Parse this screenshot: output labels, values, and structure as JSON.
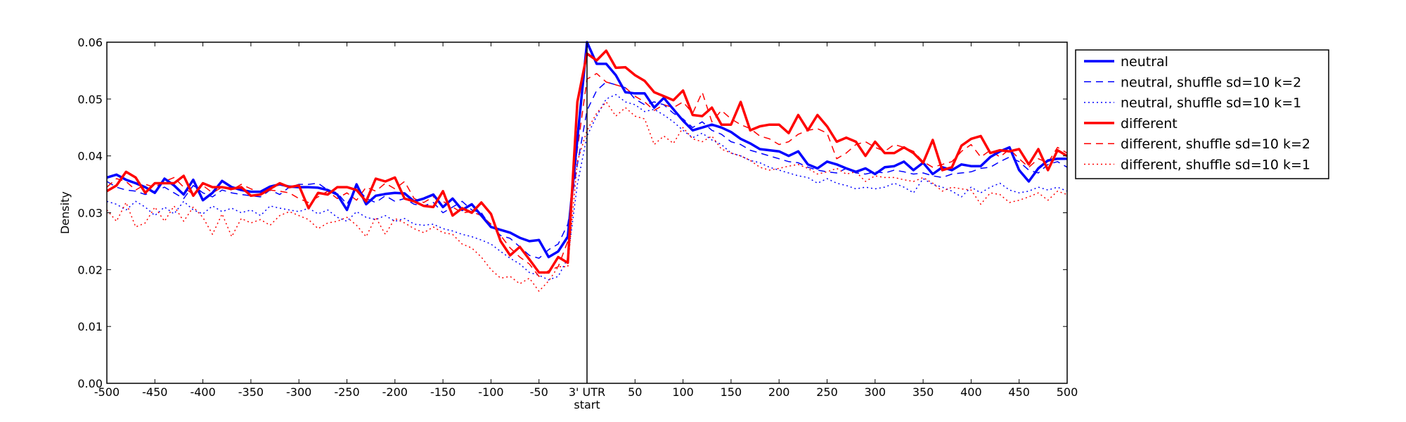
{
  "chart_data": {
    "type": "line",
    "title": "",
    "xlabel": "start",
    "ylabel": "Density",
    "xlim": [
      -500,
      500
    ],
    "ylim": [
      0.0,
      0.06
    ],
    "x_ticks": [
      -500,
      -450,
      -400,
      -350,
      -300,
      -250,
      -200,
      -150,
      -100,
      -50,
      0,
      50,
      100,
      150,
      200,
      250,
      300,
      350,
      400,
      450,
      500
    ],
    "x_tick_labels": [
      "-500",
      "-450",
      "-400",
      "-350",
      "-300",
      "-250",
      "-200",
      "-150",
      "-100",
      "-50",
      "3' UTR",
      "50",
      "100",
      "150",
      "200",
      "250",
      "300",
      "350",
      "400",
      "450",
      "500"
    ],
    "y_ticks": [
      0.0,
      0.01,
      0.02,
      0.03,
      0.04,
      0.05,
      0.06
    ],
    "y_tick_labels": [
      "0.00",
      "0.01",
      "0.02",
      "0.03",
      "0.04",
      "0.05",
      "0.06"
    ],
    "vertical_line_at": 0,
    "grid": false,
    "legend_position": "outside-right",
    "x": [
      -500,
      -490,
      -480,
      -470,
      -460,
      -450,
      -440,
      -430,
      -420,
      -410,
      -400,
      -390,
      -380,
      -370,
      -360,
      -350,
      -340,
      -330,
      -320,
      -310,
      -300,
      -290,
      -280,
      -270,
      -260,
      -250,
      -240,
      -230,
      -220,
      -210,
      -200,
      -190,
      -180,
      -170,
      -160,
      -150,
      -140,
      -130,
      -120,
      -110,
      -100,
      -90,
      -80,
      -70,
      -60,
      -50,
      -40,
      -30,
      -20,
      -10,
      0,
      10,
      20,
      30,
      40,
      50,
      60,
      70,
      80,
      90,
      100,
      110,
      120,
      130,
      140,
      150,
      160,
      170,
      180,
      190,
      200,
      210,
      220,
      230,
      240,
      250,
      260,
      270,
      280,
      290,
      300,
      310,
      320,
      330,
      340,
      350,
      360,
      370,
      380,
      390,
      400,
      410,
      420,
      430,
      440,
      450,
      460,
      470,
      480,
      490,
      500
    ],
    "series": [
      {
        "name": "neutral",
        "color": "#0000ff",
        "style": "solid",
        "width": 3.5,
        "values": [
          0.0362,
          0.0367,
          0.0358,
          0.0352,
          0.0345,
          0.0335,
          0.036,
          0.0348,
          0.0332,
          0.0358,
          0.0322,
          0.0335,
          0.0356,
          0.0345,
          0.034,
          0.0337,
          0.0337,
          0.0346,
          0.035,
          0.0346,
          0.0345,
          0.0345,
          0.0344,
          0.034,
          0.0332,
          0.0305,
          0.035,
          0.0315,
          0.033,
          0.0333,
          0.0335,
          0.0334,
          0.032,
          0.0325,
          0.0332,
          0.031,
          0.0325,
          0.0305,
          0.0315,
          0.0295,
          0.0275,
          0.027,
          0.0265,
          0.0256,
          0.025,
          0.0252,
          0.0222,
          0.0232,
          0.0258,
          0.043,
          0.06,
          0.0562,
          0.0562,
          0.0542,
          0.0512,
          0.051,
          0.051,
          0.0485,
          0.0502,
          0.0482,
          0.0462,
          0.0445,
          0.045,
          0.0455,
          0.045,
          0.0442,
          0.043,
          0.0422,
          0.0412,
          0.041,
          0.0408,
          0.04,
          0.0408,
          0.0385,
          0.0378,
          0.039,
          0.0385,
          0.0378,
          0.0372,
          0.0378,
          0.0368,
          0.038,
          0.0382,
          0.039,
          0.0375,
          0.0388,
          0.0368,
          0.038,
          0.0375,
          0.0385,
          0.0382,
          0.0382,
          0.0398,
          0.0408,
          0.0415,
          0.0375,
          0.0355,
          0.0378,
          0.0392,
          0.0395,
          0.0395
        ]
      },
      {
        "name": "neutral, shuffle sd=10 k=2",
        "color": "#0000ff",
        "style": "dashed",
        "width": 1.5,
        "values": [
          0.0355,
          0.0345,
          0.034,
          0.0338,
          0.0332,
          0.0338,
          0.0345,
          0.0335,
          0.0325,
          0.0348,
          0.0335,
          0.0328,
          0.034,
          0.0335,
          0.0332,
          0.033,
          0.0328,
          0.034,
          0.0332,
          0.0345,
          0.035,
          0.035,
          0.0352,
          0.034,
          0.0335,
          0.0315,
          0.0345,
          0.0325,
          0.0318,
          0.033,
          0.032,
          0.0325,
          0.0315,
          0.0312,
          0.0318,
          0.03,
          0.031,
          0.032,
          0.0305,
          0.03,
          0.0275,
          0.026,
          0.0255,
          0.024,
          0.0225,
          0.022,
          0.0235,
          0.0245,
          0.028,
          0.0385,
          0.048,
          0.0515,
          0.053,
          0.0525,
          0.052,
          0.05,
          0.049,
          0.0495,
          0.049,
          0.0475,
          0.0465,
          0.045,
          0.046,
          0.0445,
          0.0438,
          0.0425,
          0.042,
          0.041,
          0.0405,
          0.04,
          0.0395,
          0.039,
          0.0388,
          0.038,
          0.0375,
          0.0372,
          0.037,
          0.0378,
          0.037,
          0.0368,
          0.0372,
          0.037,
          0.0375,
          0.0372,
          0.0368,
          0.037,
          0.0365,
          0.0362,
          0.0368,
          0.037,
          0.0372,
          0.0378,
          0.038,
          0.039,
          0.0398,
          0.039,
          0.0375,
          0.037,
          0.0385,
          0.039,
          0.038
        ]
      },
      {
        "name": "neutral, shuffle sd=10 k=1",
        "color": "#0000ff",
        "style": "dotted",
        "width": 1.5,
        "values": [
          0.032,
          0.0315,
          0.0305,
          0.032,
          0.031,
          0.0295,
          0.031,
          0.0298,
          0.032,
          0.0305,
          0.0298,
          0.0312,
          0.0302,
          0.0308,
          0.03,
          0.0305,
          0.0295,
          0.0312,
          0.0308,
          0.0305,
          0.0302,
          0.0308,
          0.0298,
          0.0305,
          0.0292,
          0.0285,
          0.0302,
          0.0292,
          0.0288,
          0.0295,
          0.0285,
          0.029,
          0.028,
          0.0278,
          0.028,
          0.0272,
          0.0268,
          0.0262,
          0.0258,
          0.0252,
          0.0245,
          0.0232,
          0.022,
          0.021,
          0.0195,
          0.019,
          0.0182,
          0.0188,
          0.022,
          0.035,
          0.0435,
          0.047,
          0.05,
          0.0508,
          0.0495,
          0.049,
          0.0478,
          0.0482,
          0.0472,
          0.046,
          0.0445,
          0.0432,
          0.044,
          0.0428,
          0.042,
          0.0405,
          0.04,
          0.0392,
          0.0388,
          0.038,
          0.0375,
          0.037,
          0.0365,
          0.0362,
          0.0352,
          0.036,
          0.0352,
          0.0348,
          0.0342,
          0.0345,
          0.0342,
          0.0345,
          0.0352,
          0.0345,
          0.0335,
          0.036,
          0.035,
          0.0345,
          0.0338,
          0.0328,
          0.0345,
          0.0335,
          0.0345,
          0.0352,
          0.034,
          0.0335,
          0.0338,
          0.0345,
          0.034,
          0.0345,
          0.0338
        ]
      },
      {
        "name": "different",
        "color": "#ff0000",
        "style": "solid",
        "width": 3.5,
        "values": [
          0.0338,
          0.0348,
          0.0372,
          0.0362,
          0.0335,
          0.0352,
          0.0352,
          0.0352,
          0.0365,
          0.033,
          0.0352,
          0.0345,
          0.0345,
          0.0342,
          0.0345,
          0.033,
          0.0332,
          0.0342,
          0.0352,
          0.0345,
          0.0348,
          0.0308,
          0.0335,
          0.0332,
          0.0345,
          0.0345,
          0.034,
          0.032,
          0.036,
          0.0355,
          0.0362,
          0.0325,
          0.032,
          0.0312,
          0.031,
          0.0338,
          0.0295,
          0.0308,
          0.03,
          0.0318,
          0.0298,
          0.025,
          0.0225,
          0.024,
          0.0218,
          0.0195,
          0.0195,
          0.0222,
          0.0212,
          0.0495,
          0.058,
          0.0568,
          0.0585,
          0.0555,
          0.0556,
          0.0542,
          0.0532,
          0.0512,
          0.0505,
          0.0498,
          0.0515,
          0.0472,
          0.047,
          0.0485,
          0.0455,
          0.0455,
          0.0495,
          0.0445,
          0.0452,
          0.0455,
          0.0455,
          0.044,
          0.0472,
          0.0445,
          0.0472,
          0.0452,
          0.0425,
          0.0432,
          0.0425,
          0.04,
          0.0425,
          0.0405,
          0.0405,
          0.0415,
          0.0405,
          0.0388,
          0.0428,
          0.0375,
          0.038,
          0.0418,
          0.043,
          0.0435,
          0.0405,
          0.041,
          0.0408,
          0.0412,
          0.0385,
          0.0412,
          0.0375,
          0.041,
          0.04
        ]
      },
      {
        "name": "different, shuffle sd=10 k=2",
        "color": "#ff0000",
        "style": "dashed",
        "width": 1.5,
        "values": [
          0.0345,
          0.036,
          0.0355,
          0.034,
          0.035,
          0.0345,
          0.0355,
          0.0362,
          0.0345,
          0.0332,
          0.0348,
          0.0335,
          0.0345,
          0.034,
          0.035,
          0.0342,
          0.0335,
          0.034,
          0.0338,
          0.0335,
          0.0325,
          0.0318,
          0.0328,
          0.0338,
          0.0325,
          0.0335,
          0.0322,
          0.0345,
          0.0338,
          0.0352,
          0.0342,
          0.0355,
          0.0325,
          0.0318,
          0.0328,
          0.032,
          0.031,
          0.03,
          0.0302,
          0.0295,
          0.028,
          0.026,
          0.0238,
          0.0222,
          0.021,
          0.0188,
          0.0198,
          0.0205,
          0.025,
          0.0412,
          0.0535,
          0.0545,
          0.053,
          0.0525,
          0.052,
          0.0505,
          0.0495,
          0.048,
          0.049,
          0.0485,
          0.0495,
          0.0475,
          0.0512,
          0.046,
          0.048,
          0.0465,
          0.0455,
          0.0448,
          0.0435,
          0.043,
          0.042,
          0.0425,
          0.0438,
          0.0445,
          0.0448,
          0.044,
          0.0395,
          0.0405,
          0.042,
          0.0425,
          0.0415,
          0.0408,
          0.042,
          0.0415,
          0.0408,
          0.039,
          0.038,
          0.0385,
          0.039,
          0.0408,
          0.042,
          0.0398,
          0.041,
          0.0398,
          0.0412,
          0.0395,
          0.038,
          0.0395,
          0.0388,
          0.0415,
          0.0405
        ]
      },
      {
        "name": "different, shuffle sd=10 k=1",
        "color": "#ff0000",
        "style": "dotted",
        "width": 1.5,
        "values": [
          0.0305,
          0.0285,
          0.0318,
          0.0275,
          0.0282,
          0.031,
          0.0285,
          0.0312,
          0.0285,
          0.031,
          0.0292,
          0.0262,
          0.0298,
          0.0258,
          0.029,
          0.0282,
          0.0288,
          0.0278,
          0.0295,
          0.0302,
          0.0295,
          0.0288,
          0.0272,
          0.0282,
          0.0285,
          0.0292,
          0.0278,
          0.0258,
          0.0292,
          0.0262,
          0.029,
          0.0282,
          0.0272,
          0.0265,
          0.0275,
          0.0265,
          0.0262,
          0.0245,
          0.0238,
          0.0222,
          0.02,
          0.0185,
          0.0188,
          0.0175,
          0.0185,
          0.0162,
          0.018,
          0.0205,
          0.0205,
          0.039,
          0.0445,
          0.0475,
          0.0495,
          0.047,
          0.0485,
          0.047,
          0.0465,
          0.042,
          0.0435,
          0.0422,
          0.045,
          0.043,
          0.0425,
          0.0435,
          0.0412,
          0.0405,
          0.04,
          0.0392,
          0.038,
          0.0375,
          0.0378,
          0.0382,
          0.0385,
          0.0378,
          0.0368,
          0.0372,
          0.0378,
          0.0368,
          0.0372,
          0.0355,
          0.0365,
          0.0362,
          0.0362,
          0.0358,
          0.0355,
          0.0362,
          0.0352,
          0.0338,
          0.0345,
          0.0342,
          0.034,
          0.0315,
          0.0335,
          0.0332,
          0.0318,
          0.0322,
          0.0328,
          0.0335,
          0.0322,
          0.0338,
          0.0332
        ]
      }
    ]
  }
}
